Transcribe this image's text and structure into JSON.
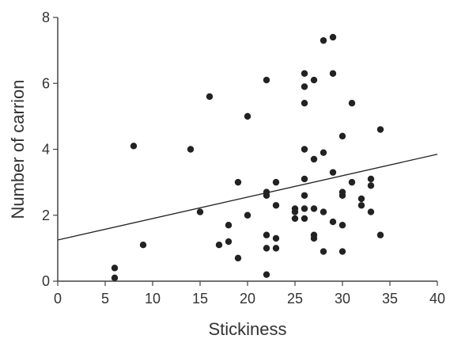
{
  "chart_data": {
    "type": "scatter",
    "title": "",
    "xlabel": "Stickiness",
    "ylabel": "Number of carrion",
    "xlim": [
      0,
      40
    ],
    "ylim": [
      0,
      8
    ],
    "x_ticks": [
      0,
      5,
      10,
      15,
      20,
      25,
      30,
      35,
      40
    ],
    "y_ticks": [
      0,
      2,
      4,
      6,
      8
    ],
    "grid": false,
    "legend": "none",
    "colors": {
      "points": "#222222",
      "line": "#222222",
      "axis": "#444444",
      "text": "#333333"
    },
    "points": [
      [
        6,
        0.4
      ],
      [
        6,
        0.1
      ],
      [
        8,
        4.1
      ],
      [
        9,
        1.1
      ],
      [
        14,
        4.0
      ],
      [
        15,
        2.1
      ],
      [
        16,
        5.6
      ],
      [
        17,
        1.1
      ],
      [
        18,
        1.7
      ],
      [
        18,
        1.2
      ],
      [
        19,
        3.0
      ],
      [
        19,
        0.7
      ],
      [
        20,
        5.0
      ],
      [
        20,
        2.0
      ],
      [
        22,
        6.1
      ],
      [
        22,
        2.7
      ],
      [
        22,
        2.6
      ],
      [
        22,
        1.4
      ],
      [
        22,
        1.0
      ],
      [
        22,
        0.2
      ],
      [
        23,
        3.0
      ],
      [
        23,
        2.3
      ],
      [
        23,
        1.3
      ],
      [
        23,
        1.0
      ],
      [
        25,
        2.2
      ],
      [
        25,
        2.1
      ],
      [
        25,
        1.9
      ],
      [
        26,
        6.3
      ],
      [
        26,
        5.9
      ],
      [
        26,
        5.4
      ],
      [
        26,
        4.0
      ],
      [
        26,
        3.1
      ],
      [
        26,
        2.6
      ],
      [
        26,
        2.2
      ],
      [
        26,
        1.9
      ],
      [
        27,
        6.1
      ],
      [
        27,
        3.7
      ],
      [
        27,
        2.2
      ],
      [
        27,
        1.4
      ],
      [
        27,
        1.3
      ],
      [
        28,
        7.3
      ],
      [
        28,
        3.9
      ],
      [
        28,
        2.1
      ],
      [
        28,
        0.9
      ],
      [
        29,
        7.4
      ],
      [
        29,
        6.3
      ],
      [
        29,
        3.3
      ],
      [
        29,
        1.8
      ],
      [
        30,
        4.4
      ],
      [
        30,
        2.7
      ],
      [
        30,
        2.6
      ],
      [
        30,
        1.7
      ],
      [
        30,
        0.9
      ],
      [
        31,
        5.4
      ],
      [
        31,
        3.0
      ],
      [
        32,
        2.5
      ],
      [
        32,
        2.3
      ],
      [
        33,
        3.1
      ],
      [
        33,
        2.9
      ],
      [
        33,
        2.1
      ],
      [
        34,
        4.6
      ],
      [
        34,
        1.4
      ]
    ],
    "regression_line": {
      "x": [
        0,
        40
      ],
      "y": [
        1.25,
        3.85
      ]
    }
  }
}
